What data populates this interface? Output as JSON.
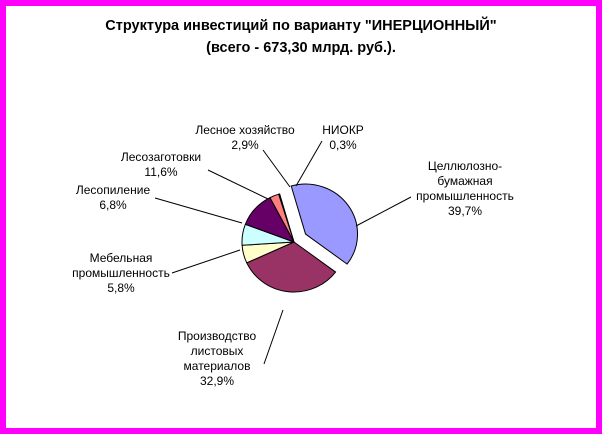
{
  "chart_data": {
    "type": "pie",
    "title_lines": [
      "Структура инвестиций по варианту \"ИНЕРЦИОННЫЙ\"",
      "(всего - 673,30 млрд. руб.)."
    ],
    "slices": [
      {
        "label_lines": [
          "Целлюлозно-",
          "бумажная",
          "промышленность"
        ],
        "value": 39.7,
        "value_text": "39,7%",
        "color": "#9999ff"
      },
      {
        "label_lines": [
          "Производство",
          "листовых",
          "материалов"
        ],
        "value": 32.9,
        "value_text": "32,9%",
        "color": "#993366"
      },
      {
        "label_lines": [
          "Мебельная",
          "промышленность"
        ],
        "value": 5.8,
        "value_text": "5,8%",
        "color": "#ffffcc"
      },
      {
        "label_lines": [
          "Лесопиление"
        ],
        "value": 6.8,
        "value_text": "6,8%",
        "color": "#ccffff"
      },
      {
        "label_lines": [
          "Лесозаготовки"
        ],
        "value": 11.6,
        "value_text": "11,6%",
        "color": "#660066"
      },
      {
        "label_lines": [
          "Лесное хозяйство"
        ],
        "value": 2.9,
        "value_text": "2,9%",
        "color": "#ff8080"
      },
      {
        "label_lines": [
          "НИОКР"
        ],
        "value": 0.3,
        "value_text": "0,3%",
        "color": "#0066cc"
      }
    ]
  }
}
